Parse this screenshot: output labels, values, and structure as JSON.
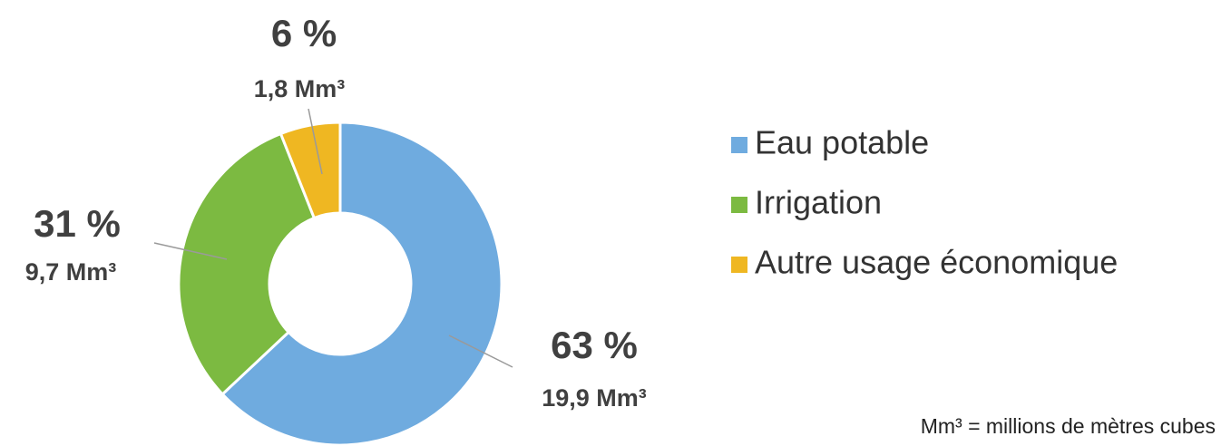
{
  "chart_data": {
    "type": "donut",
    "categories": [
      "Eau potable",
      "Irrigation",
      "Autre usage économique"
    ],
    "values": [
      63,
      31,
      6
    ],
    "value_labels": [
      "63 %",
      "31 %",
      "6 %"
    ],
    "volume_labels": [
      "19,9 Mm³",
      "9,7 Mm³",
      "1,8 Mm³"
    ],
    "colors": [
      "#6fabdf",
      "#7cba41",
      "#efb722"
    ],
    "legend": "right",
    "note": "Mm³ = millions de mètres cubes"
  }
}
